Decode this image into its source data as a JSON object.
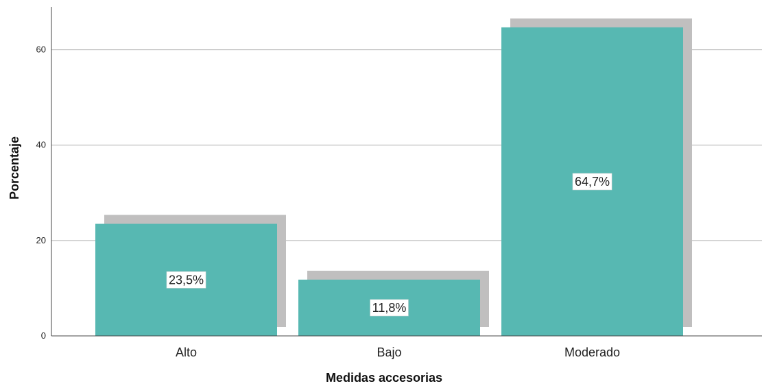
{
  "chart_data": {
    "type": "bar",
    "title": "",
    "xlabel": "Medidas accesorias",
    "ylabel": "Porcentaje",
    "categories": [
      "Alto",
      "Bajo",
      "Moderado"
    ],
    "values": [
      23.5,
      11.8,
      64.7
    ],
    "data_labels": [
      "23,5%",
      "11,8%",
      "64,7%"
    ],
    "ylim": [
      0,
      69
    ],
    "yticks": [
      0,
      20,
      40,
      60
    ],
    "grid": true,
    "colors": {
      "bar": "#57b8b2",
      "shadow": "#c0bfbf",
      "grid": "#b0b0b0",
      "axis": "#444444"
    }
  }
}
